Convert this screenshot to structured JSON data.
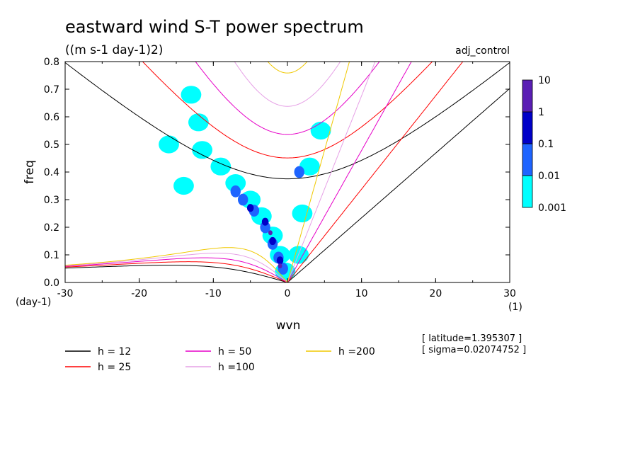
{
  "chart_data": {
    "type": "line",
    "title": "eastward wind S-T power spectrum",
    "subtitle": "((m s-1 day-1)2)",
    "run_label": "adj_control",
    "xlabel": "wvn",
    "ylabel": "freq",
    "x_unit": "(1)",
    "y_unit": "(day-1)",
    "xlim": [
      -30,
      30
    ],
    "ylim": [
      0,
      0.8
    ],
    "x_ticks": [
      "-30",
      "-20",
      "-10",
      "0",
      "10",
      "20",
      "30"
    ],
    "y_ticks": [
      "0.0",
      "0.1",
      "0.2",
      "0.3",
      "0.4",
      "0.5",
      "0.6",
      "0.7",
      "0.8"
    ],
    "grid": false,
    "colorbar": {
      "levels": [
        "0.001",
        "0.01",
        "0.1",
        "1",
        "10"
      ],
      "colors": [
        "#00ffff",
        "#1e64ff",
        "#0000c8",
        "#5a1eb4"
      ]
    },
    "series": [
      {
        "name": "h = 12",
        "color": "#000000",
        "equivalent_depth": 12
      },
      {
        "name": "h = 25",
        "color": "#ff0000",
        "equivalent_depth": 25
      },
      {
        "name": "h = 50",
        "color": "#e600c8",
        "equivalent_depth": 50
      },
      {
        "name": "h =100",
        "color": "#e6a0e6",
        "equivalent_depth": 100
      },
      {
        "name": "h =200",
        "color": "#f0c800",
        "equivalent_depth": 200
      }
    ],
    "spectrum_blobs": [
      {
        "x": -11.5,
        "y": 0.48,
        "level": 0
      },
      {
        "x": -9,
        "y": 0.42,
        "level": 0
      },
      {
        "x": -7,
        "y": 0.36,
        "level": 0
      },
      {
        "x": -5,
        "y": 0.3,
        "level": 0
      },
      {
        "x": -3.5,
        "y": 0.24,
        "level": 0
      },
      {
        "x": -2,
        "y": 0.17,
        "level": 0
      },
      {
        "x": -1,
        "y": 0.1,
        "level": 0
      },
      {
        "x": -0.3,
        "y": 0.04,
        "level": 0
      },
      {
        "x": -12,
        "y": 0.58,
        "level": 0
      },
      {
        "x": -13,
        "y": 0.68,
        "level": 0
      },
      {
        "x": -14,
        "y": 0.35,
        "level": 0
      },
      {
        "x": -16,
        "y": 0.5,
        "level": 0
      },
      {
        "x": 3,
        "y": 0.42,
        "level": 0
      },
      {
        "x": 4.5,
        "y": 0.55,
        "level": 0
      },
      {
        "x": 2,
        "y": 0.25,
        "level": 0
      },
      {
        "x": 1.5,
        "y": 0.1,
        "level": 0
      },
      {
        "x": -6,
        "y": 0.3,
        "level": 1
      },
      {
        "x": -4.5,
        "y": 0.26,
        "level": 1
      },
      {
        "x": -3,
        "y": 0.2,
        "level": 1
      },
      {
        "x": -2,
        "y": 0.14,
        "level": 1
      },
      {
        "x": -1.2,
        "y": 0.09,
        "level": 1
      },
      {
        "x": -0.6,
        "y": 0.05,
        "level": 1
      },
      {
        "x": -7,
        "y": 0.33,
        "level": 1
      },
      {
        "x": 1.6,
        "y": 0.4,
        "level": 1
      },
      {
        "x": -3,
        "y": 0.22,
        "level": 2
      },
      {
        "x": -2,
        "y": 0.15,
        "level": 2
      },
      {
        "x": -1,
        "y": 0.08,
        "level": 2
      },
      {
        "x": -5,
        "y": 0.27,
        "level": 2
      },
      {
        "x": -2.3,
        "y": 0.18,
        "level": 3
      },
      {
        "x": -1,
        "y": 0.06,
        "level": 3
      }
    ],
    "annotations": [
      "[ latitude=1.395307 ]",
      "[ sigma=0.02074752 ]"
    ]
  }
}
